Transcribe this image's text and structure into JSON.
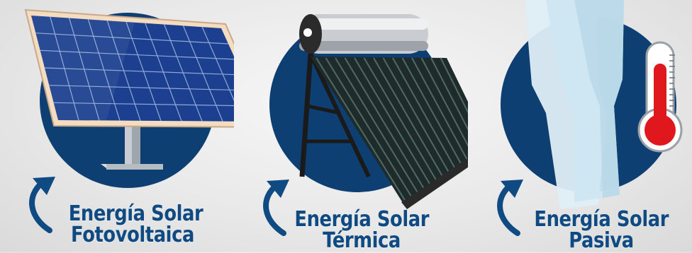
{
  "panels": [
    {
      "id": "fotovoltaica",
      "line1": "Energía Solar",
      "line2": "Fotovoltaica",
      "icon": "solar-panel-icon"
    },
    {
      "id": "termica",
      "line1": "Energía Solar",
      "line2": "Térmica",
      "icon": "solar-water-heater-icon"
    },
    {
      "id": "pasiva",
      "line1": "Energía Solar",
      "line2": "Pasiva",
      "icon": "window-thermometer-icon"
    }
  ],
  "colors": {
    "circle": "#0e3f73",
    "label": "#0f4a82",
    "panel_cells": "#1c3f8f",
    "panel_frame": "#f3dcc0",
    "thermometer_red": "#e0171d",
    "glass": "#cfe6f2"
  }
}
